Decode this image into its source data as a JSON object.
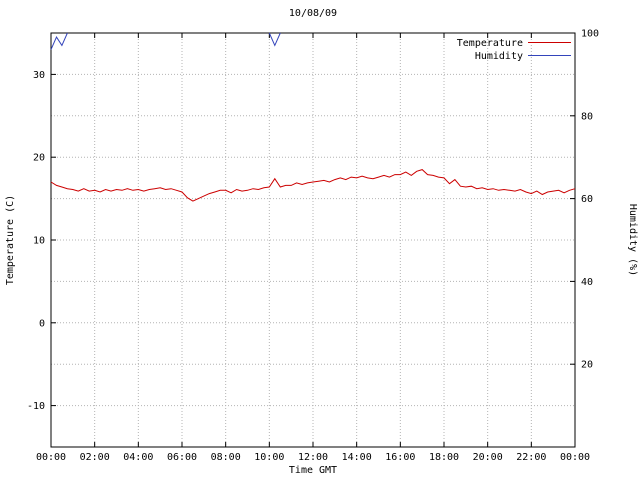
{
  "chart_data": {
    "type": "line",
    "title": "10/08/09",
    "xlabel": "Time GMT",
    "ylabel_left": "Temperature (C)",
    "ylabel_right": "Humidity (%)",
    "grid": true,
    "legend_position": "top-right",
    "x_range": [
      0,
      24
    ],
    "x_start": 0,
    "x_step": 0.25,
    "x_tick_values": [
      0,
      2,
      4,
      6,
      8,
      10,
      12,
      14,
      16,
      18,
      20,
      22,
      24
    ],
    "x_tick_labels": [
      "00:00",
      "02:00",
      "04:00",
      "06:00",
      "08:00",
      "10:00",
      "12:00",
      "14:00",
      "16:00",
      "18:00",
      "20:00",
      "22:00",
      "00:00"
    ],
    "y_left": {
      "lim": [
        -15,
        35
      ],
      "ticks": [
        -10,
        0,
        10,
        20,
        30
      ]
    },
    "y_right": {
      "lim": [
        0,
        100
      ],
      "ticks": [
        20,
        40,
        60,
        80,
        100
      ]
    },
    "grid_color": "#b4b4b4",
    "series": [
      {
        "name": "Temperature",
        "axis": "left",
        "color": "#cc0000",
        "clip_at_max": false,
        "values": [
          17.0,
          16.6,
          16.4,
          16.2,
          16.1,
          15.9,
          16.2,
          15.9,
          16.0,
          15.8,
          16.1,
          15.9,
          16.1,
          16.0,
          16.2,
          16.0,
          16.1,
          15.9,
          16.1,
          16.2,
          16.3,
          16.1,
          16.2,
          16.0,
          15.8,
          15.1,
          14.7,
          15.0,
          15.3,
          15.6,
          15.8,
          16.0,
          16.0,
          15.7,
          16.1,
          15.9,
          16.0,
          16.2,
          16.1,
          16.3,
          16.4,
          17.4,
          16.4,
          16.6,
          16.6,
          16.9,
          16.7,
          16.9,
          17.0,
          17.1,
          17.2,
          17.0,
          17.3,
          17.5,
          17.3,
          17.6,
          17.5,
          17.7,
          17.5,
          17.4,
          17.6,
          17.8,
          17.6,
          17.9,
          17.9,
          18.2,
          17.8,
          18.3,
          18.5,
          17.9,
          17.8,
          17.6,
          17.5,
          16.8,
          17.3,
          16.5,
          16.4,
          16.5,
          16.2,
          16.3,
          16.1,
          16.2,
          16.0,
          16.1,
          16.0,
          15.9,
          16.1,
          15.8,
          15.6,
          15.9,
          15.5,
          15.8,
          15.9,
          16.0,
          15.7,
          16.0,
          16.2
        ]
      },
      {
        "name": "Humidity",
        "axis": "right",
        "color": "#3344bb",
        "clip_at_max": true,
        "values": [
          96,
          99,
          97,
          100,
          100,
          100,
          100,
          100,
          100,
          100,
          100,
          100,
          100,
          100,
          100,
          100,
          100,
          100,
          100,
          100,
          100,
          100,
          100,
          100,
          100,
          100,
          100,
          100,
          100,
          100,
          100,
          100,
          100,
          100,
          100,
          100,
          100,
          100,
          100,
          100,
          100,
          97,
          100,
          100,
          100,
          100,
          100,
          100,
          100,
          100,
          100,
          100,
          100,
          100,
          100,
          100,
          100,
          100,
          100,
          100,
          100,
          100,
          100,
          100,
          100,
          100,
          100,
          100,
          100,
          100,
          100,
          100,
          100,
          100,
          100,
          100,
          100,
          100,
          100,
          100,
          100,
          100,
          100,
          100,
          100,
          100,
          100,
          100,
          100,
          100,
          100,
          100,
          100,
          100,
          100,
          100,
          100
        ]
      }
    ]
  }
}
